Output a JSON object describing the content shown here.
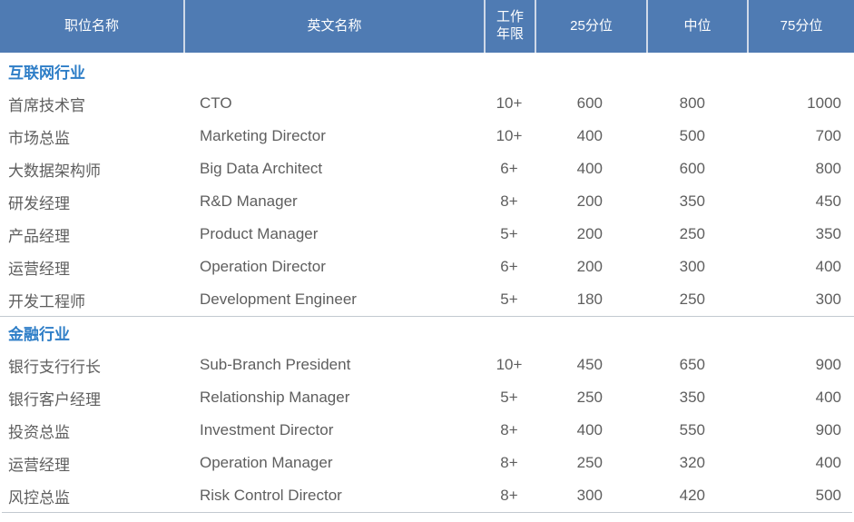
{
  "colors": {
    "header_bg": "#4f7bb3",
    "header_text": "#ffffff",
    "header_divider": "#cfd9e8",
    "section_label": "#2e7ec7",
    "body_text": "#5e5e5e",
    "separator": "#c3c9d0"
  },
  "table": {
    "header": {
      "columns": [
        "职位名称",
        "英文名称",
        "工作年限",
        "25分位",
        "中位",
        "75分位"
      ]
    },
    "sections": [
      {
        "label": "互联网行业",
        "rows": [
          {
            "position": "首席技术官",
            "english": "CTO",
            "years": "10+",
            "p25": "600",
            "median": "800",
            "p75": "1000"
          },
          {
            "position": "市场总监",
            "english": "Marketing Director",
            "years": "10+",
            "p25": "400",
            "median": "500",
            "p75": "700"
          },
          {
            "position": "大数据架构师",
            "english": "Big Data Architect",
            "years": "6+",
            "p25": "400",
            "median": "600",
            "p75": "800"
          },
          {
            "position": "研发经理",
            "english": "R&D Manager",
            "years": "8+",
            "p25": "200",
            "median": "350",
            "p75": "450"
          },
          {
            "position": "产品经理",
            "english": "Product Manager",
            "years": "5+",
            "p25": "200",
            "median": "250",
            "p75": "350"
          },
          {
            "position": "运营经理",
            "english": "Operation Director",
            "years": "6+",
            "p25": "200",
            "median": "300",
            "p75": "400"
          },
          {
            "position": "开发工程师",
            "english": "Development Engineer",
            "years": "5+",
            "p25": "180",
            "median": "250",
            "p75": "300"
          }
        ]
      },
      {
        "label": "金融行业",
        "rows": [
          {
            "position": "银行支行行长",
            "english": "Sub-Branch President",
            "years": "10+",
            "p25": "450",
            "median": "650",
            "p75": "900"
          },
          {
            "position": "银行客户经理",
            "english": "Relationship Manager",
            "years": "5+",
            "p25": "250",
            "median": "350",
            "p75": "400"
          },
          {
            "position": "投资总监",
            "english": "Investment Director",
            "years": "8+",
            "p25": "400",
            "median": "550",
            "p75": "900"
          },
          {
            "position": "运营经理",
            "english": "Operation Manager",
            "years": "8+",
            "p25": "250",
            "median": "320",
            "p75": "400"
          },
          {
            "position": "风控总监",
            "english": "Risk Control Director",
            "years": "8+",
            "p25": "300",
            "median": "420",
            "p75": "500"
          }
        ]
      }
    ]
  }
}
